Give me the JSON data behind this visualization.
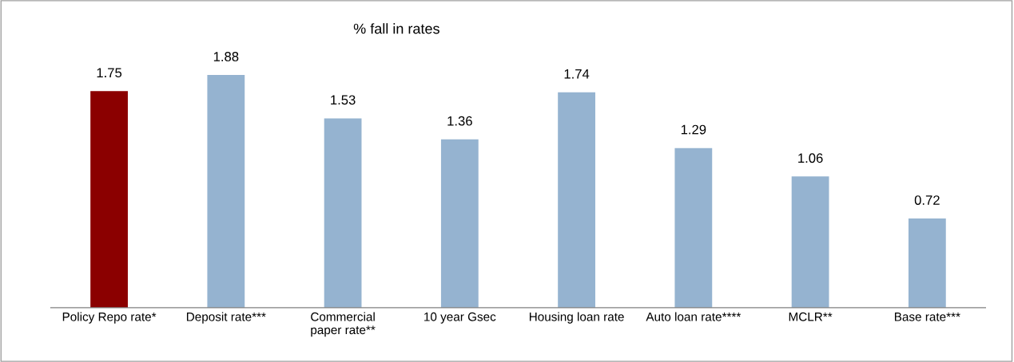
{
  "chart_data": {
    "type": "bar",
    "title": "% fall in rates",
    "categories": [
      "Policy Repo rate*",
      "Deposit rate***",
      "Commercial\npaper rate**",
      "10 year Gsec",
      "Housing loan rate",
      "Auto loan rate****",
      "MCLR**",
      "Base rate***"
    ],
    "values": [
      1.75,
      1.88,
      1.53,
      1.36,
      1.74,
      1.29,
      1.06,
      0.72
    ],
    "colors": [
      "#8b0000",
      "#95b3d0",
      "#95b3d0",
      "#95b3d0",
      "#95b3d0",
      "#95b3d0",
      "#95b3d0",
      "#95b3d0"
    ],
    "data_labels": true,
    "tick_labels": "x"
  }
}
